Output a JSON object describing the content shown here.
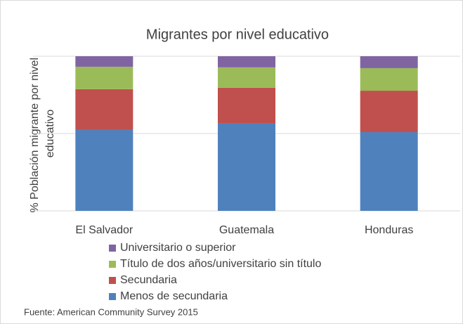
{
  "chart_data": {
    "type": "stacked_bar",
    "title": "Migrantes por nivel educativo",
    "ylabel": [
      "% Población migrante por nivel",
      "educativo"
    ],
    "categories": [
      "El Salvador",
      "Guatemala",
      "Honduras"
    ],
    "series": [
      {
        "name": "Menos de secundaria",
        "color": "#4f81bd",
        "values": [
          52.3,
          56.4,
          50.9
        ]
      },
      {
        "name": "Secundaria",
        "color": "#c0504d",
        "values": [
          26.4,
          23.2,
          26.8
        ]
      },
      {
        "name": "Título de dos años/universitario sin título",
        "color": "#9bbb59",
        "values": [
          14.5,
          13.2,
          14.6
        ]
      },
      {
        "name": "Universitario  o superior",
        "color": "#8064a2",
        "values": [
          6.8,
          7.2,
          7.7
        ]
      }
    ],
    "ylim": [
      0,
      100
    ],
    "yticks": [
      0,
      50,
      100
    ],
    "grid": true,
    "source": "Fuente: American Community Survey 2015"
  }
}
